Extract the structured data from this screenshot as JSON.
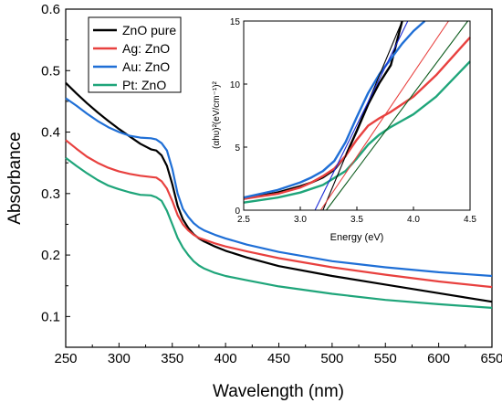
{
  "chart_data": [
    {
      "type": "line",
      "title": "",
      "xlabel": "Wavelength (nm)",
      "ylabel": "Absorbance",
      "xlim": [
        250,
        650
      ],
      "ylim": [
        0.05,
        0.6
      ],
      "xticks": [
        250,
        300,
        350,
        400,
        450,
        500,
        550,
        600,
        650
      ],
      "yticks": [
        0.1,
        0.2,
        0.3,
        0.4,
        0.5,
        0.6
      ],
      "xtick_labels": [
        "250",
        "300",
        "350",
        "400",
        "450",
        "500",
        "550",
        "600",
        "650"
      ],
      "ytick_labels": [
        "0.1",
        "0.2",
        "0.3",
        "0.4",
        "0.5",
        "0.6"
      ],
      "grid": false,
      "legend_position": "top-left",
      "series": [
        {
          "name": "ZnO pure",
          "color": "#000000",
          "x": [
            250,
            260,
            270,
            280,
            290,
            300,
            310,
            320,
            330,
            335,
            340,
            345,
            350,
            355,
            360,
            365,
            370,
            375,
            380,
            390,
            400,
            420,
            450,
            500,
            550,
            600,
            650
          ],
          "y": [
            0.48,
            0.463,
            0.447,
            0.432,
            0.418,
            0.405,
            0.393,
            0.381,
            0.372,
            0.37,
            0.362,
            0.345,
            0.315,
            0.28,
            0.258,
            0.244,
            0.234,
            0.227,
            0.222,
            0.214,
            0.207,
            0.196,
            0.182,
            0.166,
            0.152,
            0.138,
            0.124
          ]
        },
        {
          "name": "Ag: ZnO",
          "color": "#e8413f",
          "x": [
            250,
            260,
            270,
            280,
            290,
            300,
            310,
            320,
            330,
            335,
            340,
            345,
            350,
            355,
            360,
            365,
            370,
            375,
            380,
            390,
            400,
            420,
            450,
            500,
            550,
            600,
            650
          ],
          "y": [
            0.387,
            0.373,
            0.36,
            0.35,
            0.342,
            0.336,
            0.332,
            0.329,
            0.327,
            0.326,
            0.32,
            0.308,
            0.288,
            0.265,
            0.25,
            0.24,
            0.233,
            0.228,
            0.225,
            0.219,
            0.214,
            0.206,
            0.195,
            0.18,
            0.168,
            0.157,
            0.148
          ]
        },
        {
          "name": "Au: ZnO",
          "color": "#1f6fd6",
          "x": [
            250,
            260,
            270,
            280,
            290,
            300,
            310,
            320,
            330,
            335,
            340,
            345,
            350,
            355,
            360,
            365,
            370,
            375,
            380,
            390,
            400,
            420,
            450,
            500,
            550,
            600,
            650
          ],
          "y": [
            0.455,
            0.443,
            0.43,
            0.418,
            0.408,
            0.4,
            0.394,
            0.391,
            0.39,
            0.388,
            0.382,
            0.37,
            0.34,
            0.3,
            0.275,
            0.262,
            0.252,
            0.245,
            0.24,
            0.233,
            0.227,
            0.217,
            0.205,
            0.19,
            0.18,
            0.172,
            0.166
          ]
        },
        {
          "name": "Pt: ZnO",
          "color": "#1fa57a",
          "x": [
            250,
            260,
            270,
            280,
            290,
            300,
            310,
            320,
            330,
            335,
            340,
            345,
            350,
            355,
            360,
            365,
            370,
            375,
            380,
            390,
            400,
            420,
            450,
            500,
            550,
            600,
            650
          ],
          "y": [
            0.358,
            0.345,
            0.333,
            0.322,
            0.313,
            0.307,
            0.302,
            0.298,
            0.297,
            0.294,
            0.288,
            0.272,
            0.25,
            0.228,
            0.212,
            0.2,
            0.19,
            0.183,
            0.178,
            0.171,
            0.166,
            0.159,
            0.149,
            0.137,
            0.127,
            0.12,
            0.114
          ]
        }
      ]
    },
    {
      "type": "line",
      "title": "",
      "xlabel": "Energy (eV)",
      "ylabel": "(αhυ)²(eV/cm⁻¹)²",
      "xlim": [
        2.5,
        4.5
      ],
      "ylim": [
        0,
        15
      ],
      "xticks": [
        2.5,
        3.0,
        3.5,
        4.0,
        4.5
      ],
      "yticks": [
        0,
        5,
        10,
        15
      ],
      "xtick_labels": [
        "2.5",
        "3.0",
        "3.5",
        "4.0",
        "4.5"
      ],
      "ytick_labels": [
        "0",
        "5",
        "10",
        "15"
      ],
      "grid": false,
      "series": [
        {
          "color": "#000000",
          "x": [
            2.5,
            2.8,
            3.0,
            3.1,
            3.2,
            3.3,
            3.4,
            3.5,
            3.6,
            3.7,
            3.8,
            3.9
          ],
          "y": [
            0.9,
            1.4,
            1.9,
            2.2,
            2.6,
            3.2,
            4.3,
            6.3,
            8.4,
            10.1,
            11.5,
            15
          ]
        },
        {
          "color": "#e8413f",
          "x": [
            2.5,
            2.8,
            3.0,
            3.1,
            3.2,
            3.3,
            3.4,
            3.5,
            3.6,
            3.7,
            3.8,
            4.0,
            4.2,
            4.5
          ],
          "y": [
            0.9,
            1.3,
            1.8,
            2.2,
            2.7,
            3.3,
            4.3,
            5.6,
            6.7,
            7.3,
            7.8,
            9.0,
            10.7,
            13.7
          ]
        },
        {
          "color": "#1f6fd6",
          "x": [
            2.5,
            2.8,
            3.0,
            3.1,
            3.2,
            3.3,
            3.4,
            3.5,
            3.6,
            3.7,
            3.8,
            3.9,
            4.0,
            4.1
          ],
          "y": [
            1.0,
            1.6,
            2.2,
            2.6,
            3.1,
            3.9,
            5.4,
            7.4,
            9.3,
            10.8,
            12.0,
            13.2,
            14.2,
            15
          ]
        },
        {
          "color": "#1fa57a",
          "x": [
            2.5,
            2.8,
            3.0,
            3.2,
            3.4,
            3.5,
            3.6,
            3.7,
            3.8,
            3.9,
            4.0,
            4.2,
            4.5
          ],
          "y": [
            0.6,
            1.0,
            1.4,
            2.0,
            3.1,
            4.1,
            5.2,
            6.0,
            6.6,
            7.1,
            7.6,
            9.0,
            11.8
          ]
        }
      ],
      "tangent_lines": [
        {
          "color": "#000000",
          "x": [
            3.2,
            3.9
          ],
          "y": [
            0,
            15
          ]
        },
        {
          "color": "#1a2ad6",
          "x": [
            3.13,
            3.95
          ],
          "y": [
            0,
            15
          ]
        },
        {
          "color": "#e8413f",
          "x": [
            3.18,
            4.31
          ],
          "y": [
            0,
            15
          ]
        },
        {
          "color": "#0d5c1e",
          "x": [
            3.23,
            4.48
          ],
          "y": [
            0,
            15
          ]
        }
      ]
    }
  ]
}
